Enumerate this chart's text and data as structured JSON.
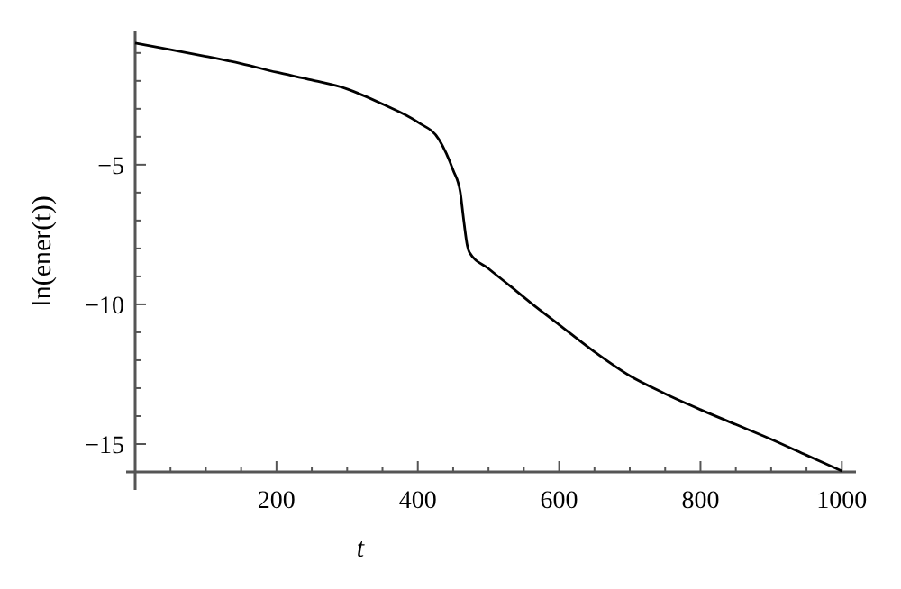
{
  "chart_data": {
    "type": "line",
    "xlabel": "t",
    "ylabel": "ln(ener(t))",
    "series": [
      {
        "color": "#000000",
        "x": [
          0,
          50,
          100,
          150,
          200,
          250,
          300,
          350,
          400,
          430,
          450,
          460,
          465,
          470,
          473,
          500,
          530,
          560,
          600,
          650,
          700,
          750,
          800,
          850,
          900,
          950,
          1000
        ],
        "values": [
          -0.65,
          -0.88,
          -1.12,
          -1.38,
          -1.69,
          -1.97,
          -2.29,
          -2.83,
          -3.48,
          -4.1,
          -5.2,
          -5.97,
          -7.0,
          -7.9,
          -8.14,
          -8.72,
          -9.33,
          -9.95,
          -10.73,
          -11.7,
          -12.56,
          -13.2,
          -13.77,
          -14.3,
          -14.83,
          -15.4,
          -15.97
        ]
      }
    ],
    "xlim": [
      0,
      1020
    ],
    "ylim": [
      -16,
      -0.2
    ],
    "xticks": [
      {
        "value": 50,
        "label": null
      },
      {
        "value": 100,
        "label": null
      },
      {
        "value": 150,
        "label": null
      },
      200,
      {
        "value": 250,
        "label": null
      },
      {
        "value": 300,
        "label": null
      },
      {
        "value": 350,
        "label": null
      },
      400,
      {
        "value": 450,
        "label": null
      },
      {
        "value": 500,
        "label": null
      },
      {
        "value": 550,
        "label": null
      },
      600,
      {
        "value": 650,
        "label": null
      },
      {
        "value": 700,
        "label": null
      },
      {
        "value": 750,
        "label": null
      },
      800,
      {
        "value": 850,
        "label": null
      },
      {
        "value": 900,
        "label": null
      },
      {
        "value": 950,
        "label": null
      },
      1000
    ],
    "yticks": [
      {
        "value": -16,
        "label": null
      },
      -15,
      {
        "value": -14,
        "label": null
      },
      {
        "value": -13,
        "label": null
      },
      {
        "value": -12,
        "label": null
      },
      {
        "value": -11,
        "label": null
      },
      -10,
      {
        "value": -9,
        "label": null
      },
      {
        "value": -8,
        "label": null
      },
      {
        "value": -7,
        "label": null
      },
      {
        "value": -6,
        "label": null
      },
      -5,
      {
        "value": -4,
        "label": null
      },
      {
        "value": -3,
        "label": null
      },
      {
        "value": -2,
        "label": null
      },
      {
        "value": -1,
        "label": null
      }
    ],
    "grid": false,
    "line_style": "solid",
    "marker": "none"
  }
}
